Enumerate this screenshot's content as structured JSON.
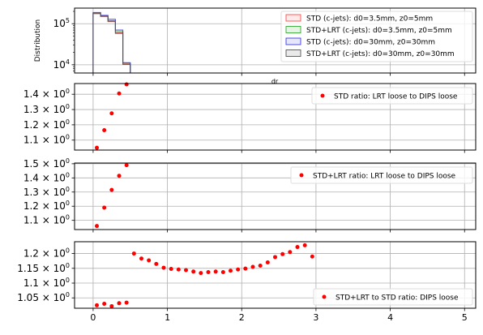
{
  "chart_data": [
    {
      "type": "histogram",
      "ylabel": "Distribution",
      "xlabel": "dr",
      "yscale": "log",
      "xlim": [
        -0.25,
        5.15
      ],
      "ylim": [
        6300,
        240000
      ],
      "grid": true,
      "legend_position": "upper-right",
      "y_ticks": [
        {
          "value": 10000,
          "base": "10",
          "exp": "4"
        },
        {
          "value": 100000,
          "base": "10",
          "exp": "5"
        }
      ],
      "bin_edges": [
        0,
        0.1,
        0.2,
        0.3,
        0.4,
        0.5
      ],
      "series": [
        {
          "name": "STD (c-jets): d0=3.5mm, z0=5mm",
          "color": "#ff4d4d",
          "values": [
            175000,
            150000,
            112000,
            60000,
            10500
          ]
        },
        {
          "name": "STD+LRT (c-jets): d0=3.5mm, z0=5mm",
          "color": "#33a833",
          "values": [
            183000,
            154000,
            118000,
            64000,
            11000
          ]
        },
        {
          "name": "STD (c-jets): d0=30mm, z0=30mm",
          "color": "#3a3ae6",
          "values": [
            188000,
            160000,
            128000,
            70000,
            11200
          ]
        },
        {
          "name": "STD+LRT (c-jets): d0=30mm, z0=30mm",
          "color": "#555555",
          "values": [
            180000,
            152000,
            115000,
            58000,
            10200
          ]
        }
      ]
    },
    {
      "type": "scatter",
      "ylim": [
        1.035,
        1.47
      ],
      "grid": true,
      "legend_position": "upper-right",
      "y_ticks": [
        {
          "value": 1.1,
          "label": "1.1 × 10",
          "exp": "0"
        },
        {
          "value": 1.2,
          "label": "1.2 × 10",
          "exp": "0"
        },
        {
          "value": 1.3,
          "label": "1.3 × 10",
          "exp": "0"
        },
        {
          "value": 1.4,
          "label": "1.4 × 10",
          "exp": "0"
        }
      ],
      "series": [
        {
          "name": "STD ratio: LRT loose to DIPS loose",
          "color": "#ff0000",
          "x": [
            0.05,
            0.15,
            0.25,
            0.35,
            0.45
          ],
          "y": [
            1.05,
            1.165,
            1.275,
            1.405,
            1.47
          ]
        }
      ]
    },
    {
      "type": "scatter",
      "ylim": [
        1.035,
        1.505
      ],
      "grid": true,
      "legend_position": "upper-right",
      "y_ticks": [
        {
          "value": 1.1,
          "label": "1.1 × 10",
          "exp": "0"
        },
        {
          "value": 1.2,
          "label": "1.2 × 10",
          "exp": "0"
        },
        {
          "value": 1.3,
          "label": "1.3 × 10",
          "exp": "0"
        },
        {
          "value": 1.4,
          "label": "1.4 × 10",
          "exp": "0"
        },
        {
          "value": 1.5,
          "label": "1.5 × 10",
          "exp": "0"
        }
      ],
      "series": [
        {
          "name": "STD+LRT ratio: LRT loose to DIPS loose",
          "color": "#ff0000",
          "x": [
            0.05,
            0.15,
            0.25,
            0.35,
            0.45
          ],
          "y": [
            1.06,
            1.19,
            1.315,
            1.415,
            1.49
          ]
        }
      ]
    },
    {
      "type": "scatter",
      "xlim": [
        -0.25,
        5.15
      ],
      "ylim": [
        1.015,
        1.24
      ],
      "grid": true,
      "legend_position": "lower-right",
      "x_ticks": [
        {
          "value": 0,
          "label": "0"
        },
        {
          "value": 1,
          "label": "1"
        },
        {
          "value": 2,
          "label": "2"
        },
        {
          "value": 3,
          "label": "3"
        },
        {
          "value": 4,
          "label": "4"
        },
        {
          "value": 5,
          "label": "5"
        }
      ],
      "y_ticks": [
        {
          "value": 1.05,
          "label": "1.05 × 10",
          "exp": "0"
        },
        {
          "value": 1.1,
          "label": "1.1 × 10",
          "exp": "0"
        },
        {
          "value": 1.15,
          "label": "1.15 × 10",
          "exp": "0"
        },
        {
          "value": 1.2,
          "label": "1.2 × 10",
          "exp": "0"
        }
      ],
      "series": [
        {
          "name": "STD+LRT to STD ratio: DIPS loose",
          "color": "#ff0000",
          "x": [
            0.05,
            0.15,
            0.25,
            0.35,
            0.45,
            0.55,
            0.65,
            0.75,
            0.85,
            0.95,
            1.05,
            1.15,
            1.25,
            1.35,
            1.45,
            1.55,
            1.65,
            1.75,
            1.85,
            1.95,
            2.05,
            2.15,
            2.25,
            2.35,
            2.45,
            2.55,
            2.65,
            2.75,
            2.85,
            2.95
          ],
          "y": [
            1.025,
            1.03,
            1.022,
            1.032,
            1.034,
            1.2,
            1.183,
            1.177,
            1.165,
            1.152,
            1.148,
            1.146,
            1.144,
            1.139,
            1.134,
            1.137,
            1.139,
            1.137,
            1.142,
            1.146,
            1.149,
            1.155,
            1.159,
            1.17,
            1.188,
            1.198,
            1.205,
            1.222,
            1.228,
            1.19
          ]
        }
      ]
    }
  ]
}
